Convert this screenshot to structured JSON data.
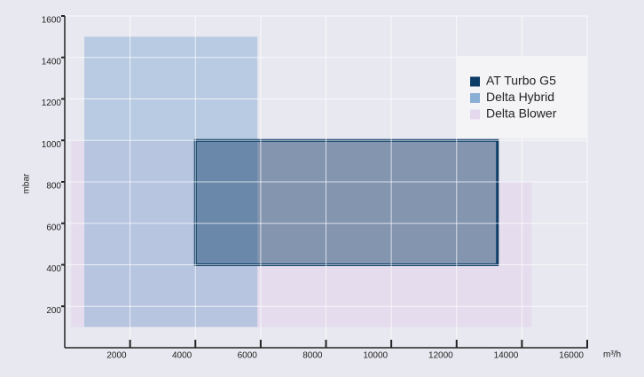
{
  "chart_data": {
    "type": "area-range",
    "x_label": "m³/h",
    "y_label": "mbar",
    "xlim": [
      0,
      16000
    ],
    "xticks": [
      2000,
      4000,
      6000,
      8000,
      10000,
      12000,
      14000,
      16000
    ],
    "ylim": [
      0,
      1600
    ],
    "yticks": [
      200,
      400,
      600,
      800,
      1000,
      1200,
      1400,
      1600
    ],
    "grid": true,
    "legend": "upper right",
    "series": [
      {
        "name": "AT Turbo G5",
        "color": "#0d3d66",
        "x": [
          4000,
          4000,
          13250,
          13250
        ],
        "y": [
          400,
          1000,
          1000,
          400
        ]
      },
      {
        "name": "Delta Hybrid",
        "color": "#8aaed4",
        "x": [
          600,
          600,
          5900,
          5900
        ],
        "y": [
          100,
          1500,
          1500,
          100
        ]
      },
      {
        "name": "Delta Blower",
        "color": "#e3d8ec",
        "x": [
          200,
          200,
          13250,
          13250,
          14300,
          14300
        ],
        "y": [
          100,
          1000,
          1000,
          800,
          800,
          100
        ]
      }
    ]
  }
}
